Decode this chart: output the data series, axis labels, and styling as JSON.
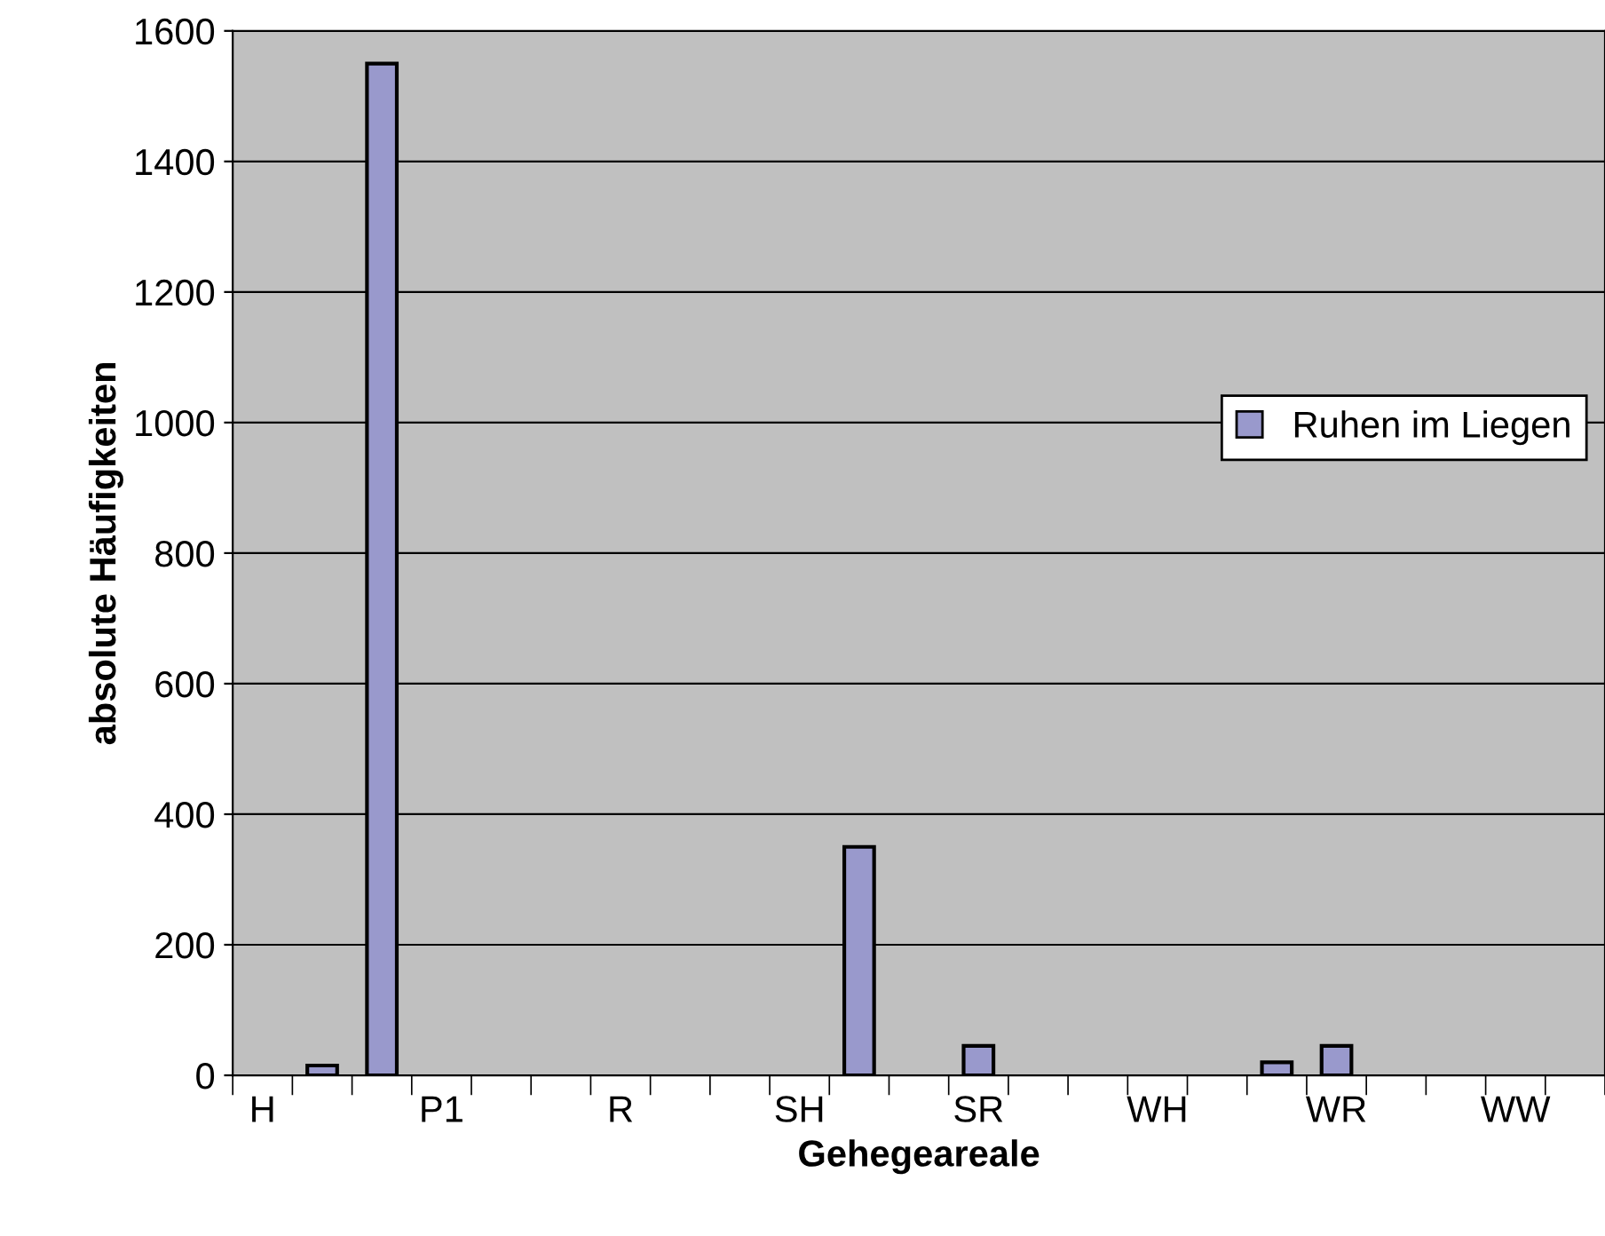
{
  "chart_data": {
    "type": "bar",
    "xlabel": "Gehegeareale",
    "ylabel": "absolute Häufigkeiten",
    "categories": [
      "H",
      null,
      null,
      "P1",
      null,
      null,
      "R",
      null,
      null,
      "SH",
      null,
      null,
      "SR",
      null,
      null,
      "WH",
      null,
      null,
      "WR",
      null,
      null,
      "WW",
      null
    ],
    "series": [
      {
        "name": "Ruhen im Liegen",
        "color": "#9999cc",
        "values": [
          0,
          15,
          1550,
          0,
          0,
          0,
          0,
          0,
          0,
          0,
          350,
          0,
          45,
          0,
          0,
          0,
          0,
          20,
          45,
          0,
          0,
          0,
          0
        ]
      }
    ],
    "ylim": [
      0,
      1600
    ],
    "yticks": [
      0,
      200,
      400,
      600,
      800,
      1000,
      1200,
      1400,
      1600
    ],
    "grid": "y",
    "legend": "right"
  }
}
